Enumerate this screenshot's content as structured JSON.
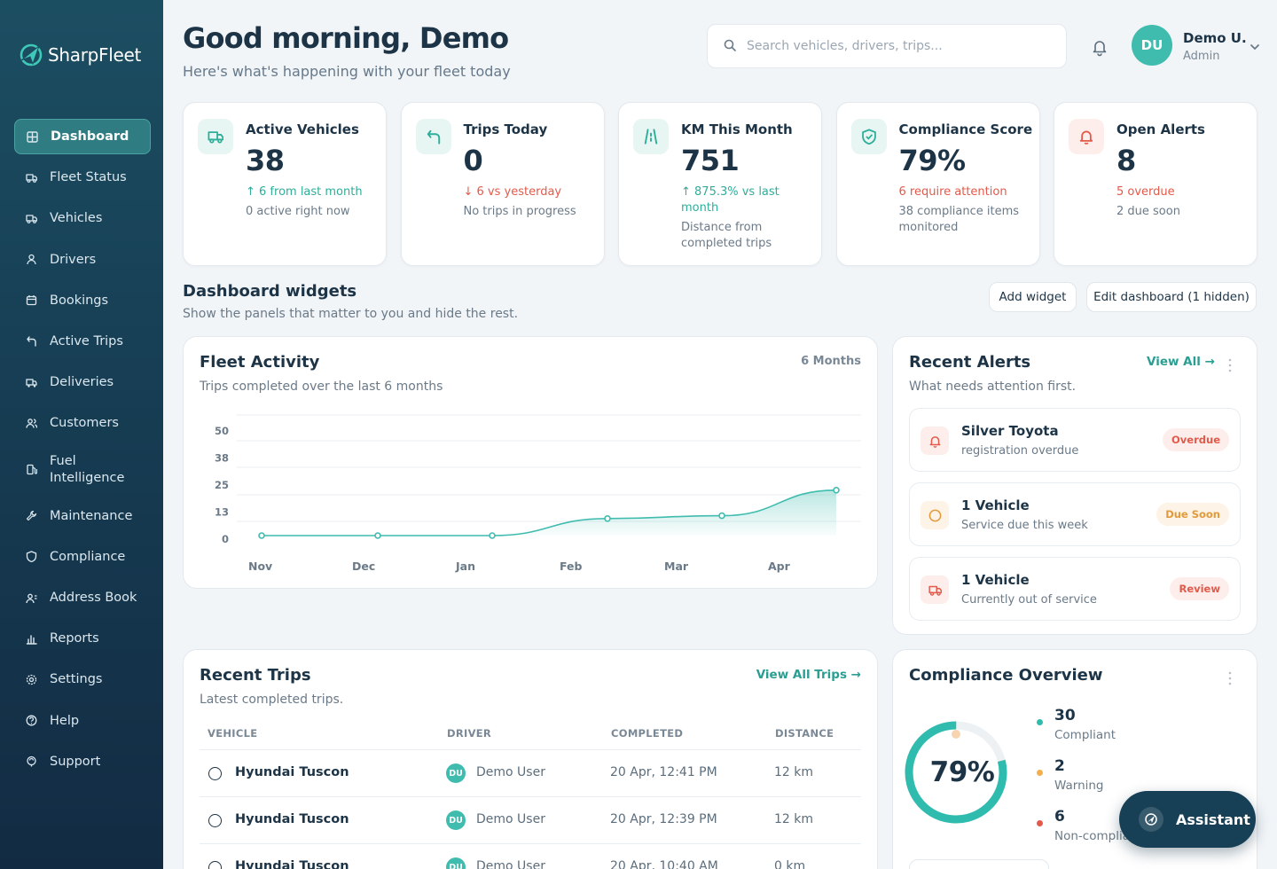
{
  "brand": {
    "name": "SharpFleet"
  },
  "sidebar": {
    "items": [
      {
        "label": "Dashboard",
        "icon": "grid-icon",
        "active": true
      },
      {
        "label": "Fleet Status",
        "icon": "truck-icon"
      },
      {
        "label": "Vehicles",
        "icon": "truck-icon"
      },
      {
        "label": "Drivers",
        "icon": "user-icon"
      },
      {
        "label": "Bookings",
        "icon": "calendar-icon"
      },
      {
        "label": "Active Trips",
        "icon": "route-icon"
      },
      {
        "label": "Deliveries",
        "icon": "package-truck-icon"
      },
      {
        "label": "Customers",
        "icon": "users-icon"
      },
      {
        "label": "Fuel Intelligence",
        "icon": "fuel-icon"
      },
      {
        "label": "Maintenance",
        "icon": "wrench-icon"
      },
      {
        "label": "Compliance",
        "icon": "shield-icon"
      },
      {
        "label": "Address Book",
        "icon": "contact-icon"
      },
      {
        "label": "Reports",
        "icon": "bar-chart-icon"
      },
      {
        "label": "Settings",
        "icon": "gear-icon"
      },
      {
        "label": "Help",
        "icon": "help-icon"
      },
      {
        "label": "Support",
        "icon": "support-icon"
      }
    ]
  },
  "header": {
    "greeting": "Good morning, Demo",
    "subtitle": "Here's what's happening with your fleet today",
    "search_placeholder": "Search vehicles, drivers, trips...",
    "user_initials": "DU",
    "user_name": "Demo U.",
    "user_role": "Admin"
  },
  "stats": [
    {
      "title": "Active Vehicles",
      "value": "38",
      "delta": "↑ 6 from last month",
      "delta_dir": "up",
      "note": "0 active right now",
      "icon": "truck-icon",
      "icon_color": "#2fae9a",
      "icon_bg": "#e8f6f3"
    },
    {
      "title": "Trips Today",
      "value": "0",
      "delta": "↓ 6 vs yesterday",
      "delta_dir": "down",
      "note": "No trips in progress",
      "icon": "route-icon",
      "icon_color": "#2fae9a",
      "icon_bg": "#e8f6f3"
    },
    {
      "title": "KM This Month",
      "value": "751",
      "delta": "↑ 875.3% vs last month",
      "delta_dir": "up",
      "note": "Distance from completed trips",
      "icon": "road-icon",
      "icon_color": "#2fae9a",
      "icon_bg": "#e8f6f3"
    },
    {
      "title": "Compliance Score",
      "value": "79%",
      "delta": "6 require attention",
      "delta_dir": "down",
      "note": "38 compliance items monitored",
      "icon": "shield-check-icon",
      "icon_color": "#2fae9a",
      "icon_bg": "#e8f6f3"
    },
    {
      "title": "Open Alerts",
      "value": "8",
      "delta": "5 overdue",
      "delta_dir": "down",
      "note": "2 due soon",
      "icon": "bell-icon",
      "icon_color": "#e35a4a",
      "icon_bg": "#fdeeec"
    }
  ],
  "widgets": {
    "title": "Dashboard widgets",
    "subtitle": "Show the panels that matter to you and hide the rest.",
    "add_label": "Add widget",
    "edit_label": "Edit dashboard (1 hidden)"
  },
  "fleet_activity": {
    "title": "Fleet Activity",
    "subtitle": "Trips completed over the last 6 months",
    "range": "6 Months"
  },
  "chart_data": {
    "type": "area",
    "categories": [
      "Nov",
      "Dec",
      "Jan",
      "Feb",
      "Mar",
      "Apr"
    ],
    "values": [
      0,
      0,
      0,
      6,
      7,
      16
    ],
    "yticks": [
      0,
      13,
      25,
      38,
      50
    ],
    "ylim": [
      0,
      50
    ],
    "color": "#3fbcae",
    "grid": true
  },
  "recent_alerts": {
    "title": "Recent Alerts",
    "subtitle": "What needs attention first.",
    "view_all": "View All →",
    "items": [
      {
        "title": "Silver Toyota",
        "sub": "registration overdue",
        "badge": "Overdue",
        "icon": "bell-icon",
        "color": "#e35a4a",
        "bg": "#fdeeec"
      },
      {
        "title": "1 Vehicle",
        "sub": "Service due this week",
        "badge": "Due Soon",
        "icon": "clock-icon",
        "color": "#e39a3a",
        "bg": "#fdf3e6"
      },
      {
        "title": "1 Vehicle",
        "sub": "Currently out of service",
        "badge": "Review",
        "icon": "truck-icon",
        "color": "#e35a4a",
        "bg": "#fdeeec"
      }
    ]
  },
  "recent_trips": {
    "title": "Recent Trips",
    "subtitle": "Latest completed trips.",
    "view_all": "View All Trips →",
    "columns": [
      "VEHICLE",
      "DRIVER",
      "COMPLETED",
      "DISTANCE"
    ],
    "rows": [
      {
        "vehicle": "Hyundai Tuscon",
        "driver_initials": "DU",
        "driver": "Demo User",
        "completed": "20 Apr, 12:41 PM",
        "distance": "12 km"
      },
      {
        "vehicle": "Hyundai Tuscon",
        "driver_initials": "DU",
        "driver": "Demo User",
        "completed": "20 Apr, 12:39 PM",
        "distance": "12 km"
      },
      {
        "vehicle": "Hyundai Tuscon",
        "driver_initials": "DU",
        "driver": "Demo User",
        "completed": "20 Apr, 10:40 AM",
        "distance": "0 km"
      }
    ]
  },
  "compliance": {
    "title": "Compliance Overview",
    "score": "79%",
    "score_value": 0.79,
    "legend": [
      {
        "value": "30",
        "label": "Compliant",
        "color": "#2fbcae"
      },
      {
        "value": "2",
        "label": "Warning",
        "color": "#f2b04c"
      },
      {
        "value": "6",
        "label": "Non-compliant",
        "color": "#e35a4a"
      }
    ]
  },
  "assistant": {
    "label": "Assistant"
  }
}
